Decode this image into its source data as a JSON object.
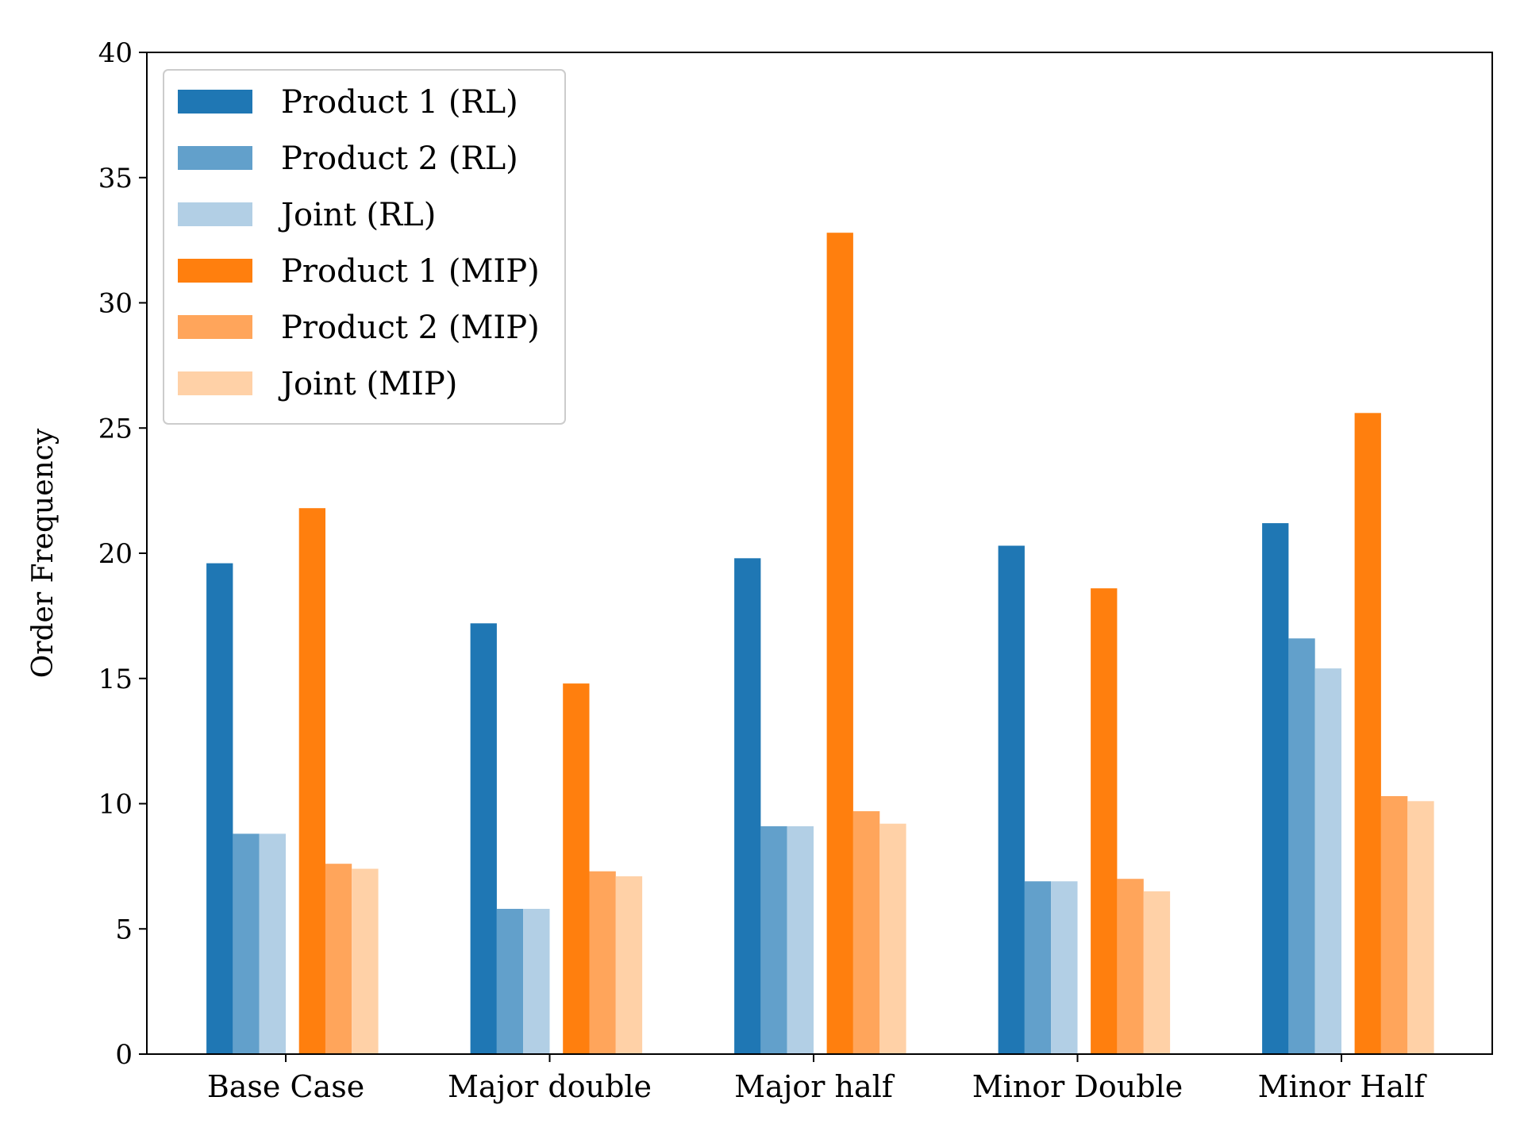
{
  "chart_data": {
    "type": "bar",
    "title": "",
    "xlabel": "",
    "ylabel": "Order Frequency",
    "ylim": [
      0,
      40
    ],
    "yticks": [
      0,
      5,
      10,
      15,
      20,
      25,
      30,
      35,
      40
    ],
    "grid": false,
    "legend_position": "top-left",
    "categories": [
      "Base Case",
      "Major double",
      "Major half",
      "Minor Double",
      "Minor Half"
    ],
    "series": [
      {
        "name": "Product 1 (RL)",
        "color": "#1f77b4",
        "values": [
          19.6,
          17.2,
          19.8,
          20.3,
          21.2
        ]
      },
      {
        "name": "Product 2 (RL)",
        "color": "#62a0cb",
        "values": [
          8.8,
          5.8,
          9.1,
          6.9,
          16.6
        ]
      },
      {
        "name": "Joint (RL)",
        "color": "#b2cfe5",
        "values": [
          8.8,
          5.8,
          9.1,
          6.9,
          15.4
        ]
      },
      {
        "name": "Product 1 (MIP)",
        "color": "#ff7f0e",
        "values": [
          21.8,
          14.8,
          32.8,
          18.6,
          25.6
        ]
      },
      {
        "name": "Product 2 (MIP)",
        "color": "#ffa55b",
        "values": [
          7.6,
          7.3,
          9.7,
          7.0,
          10.3
        ]
      },
      {
        "name": "Joint (MIP)",
        "color": "#ffd1a7",
        "values": [
          7.4,
          7.1,
          9.2,
          6.5,
          10.1
        ]
      }
    ]
  }
}
